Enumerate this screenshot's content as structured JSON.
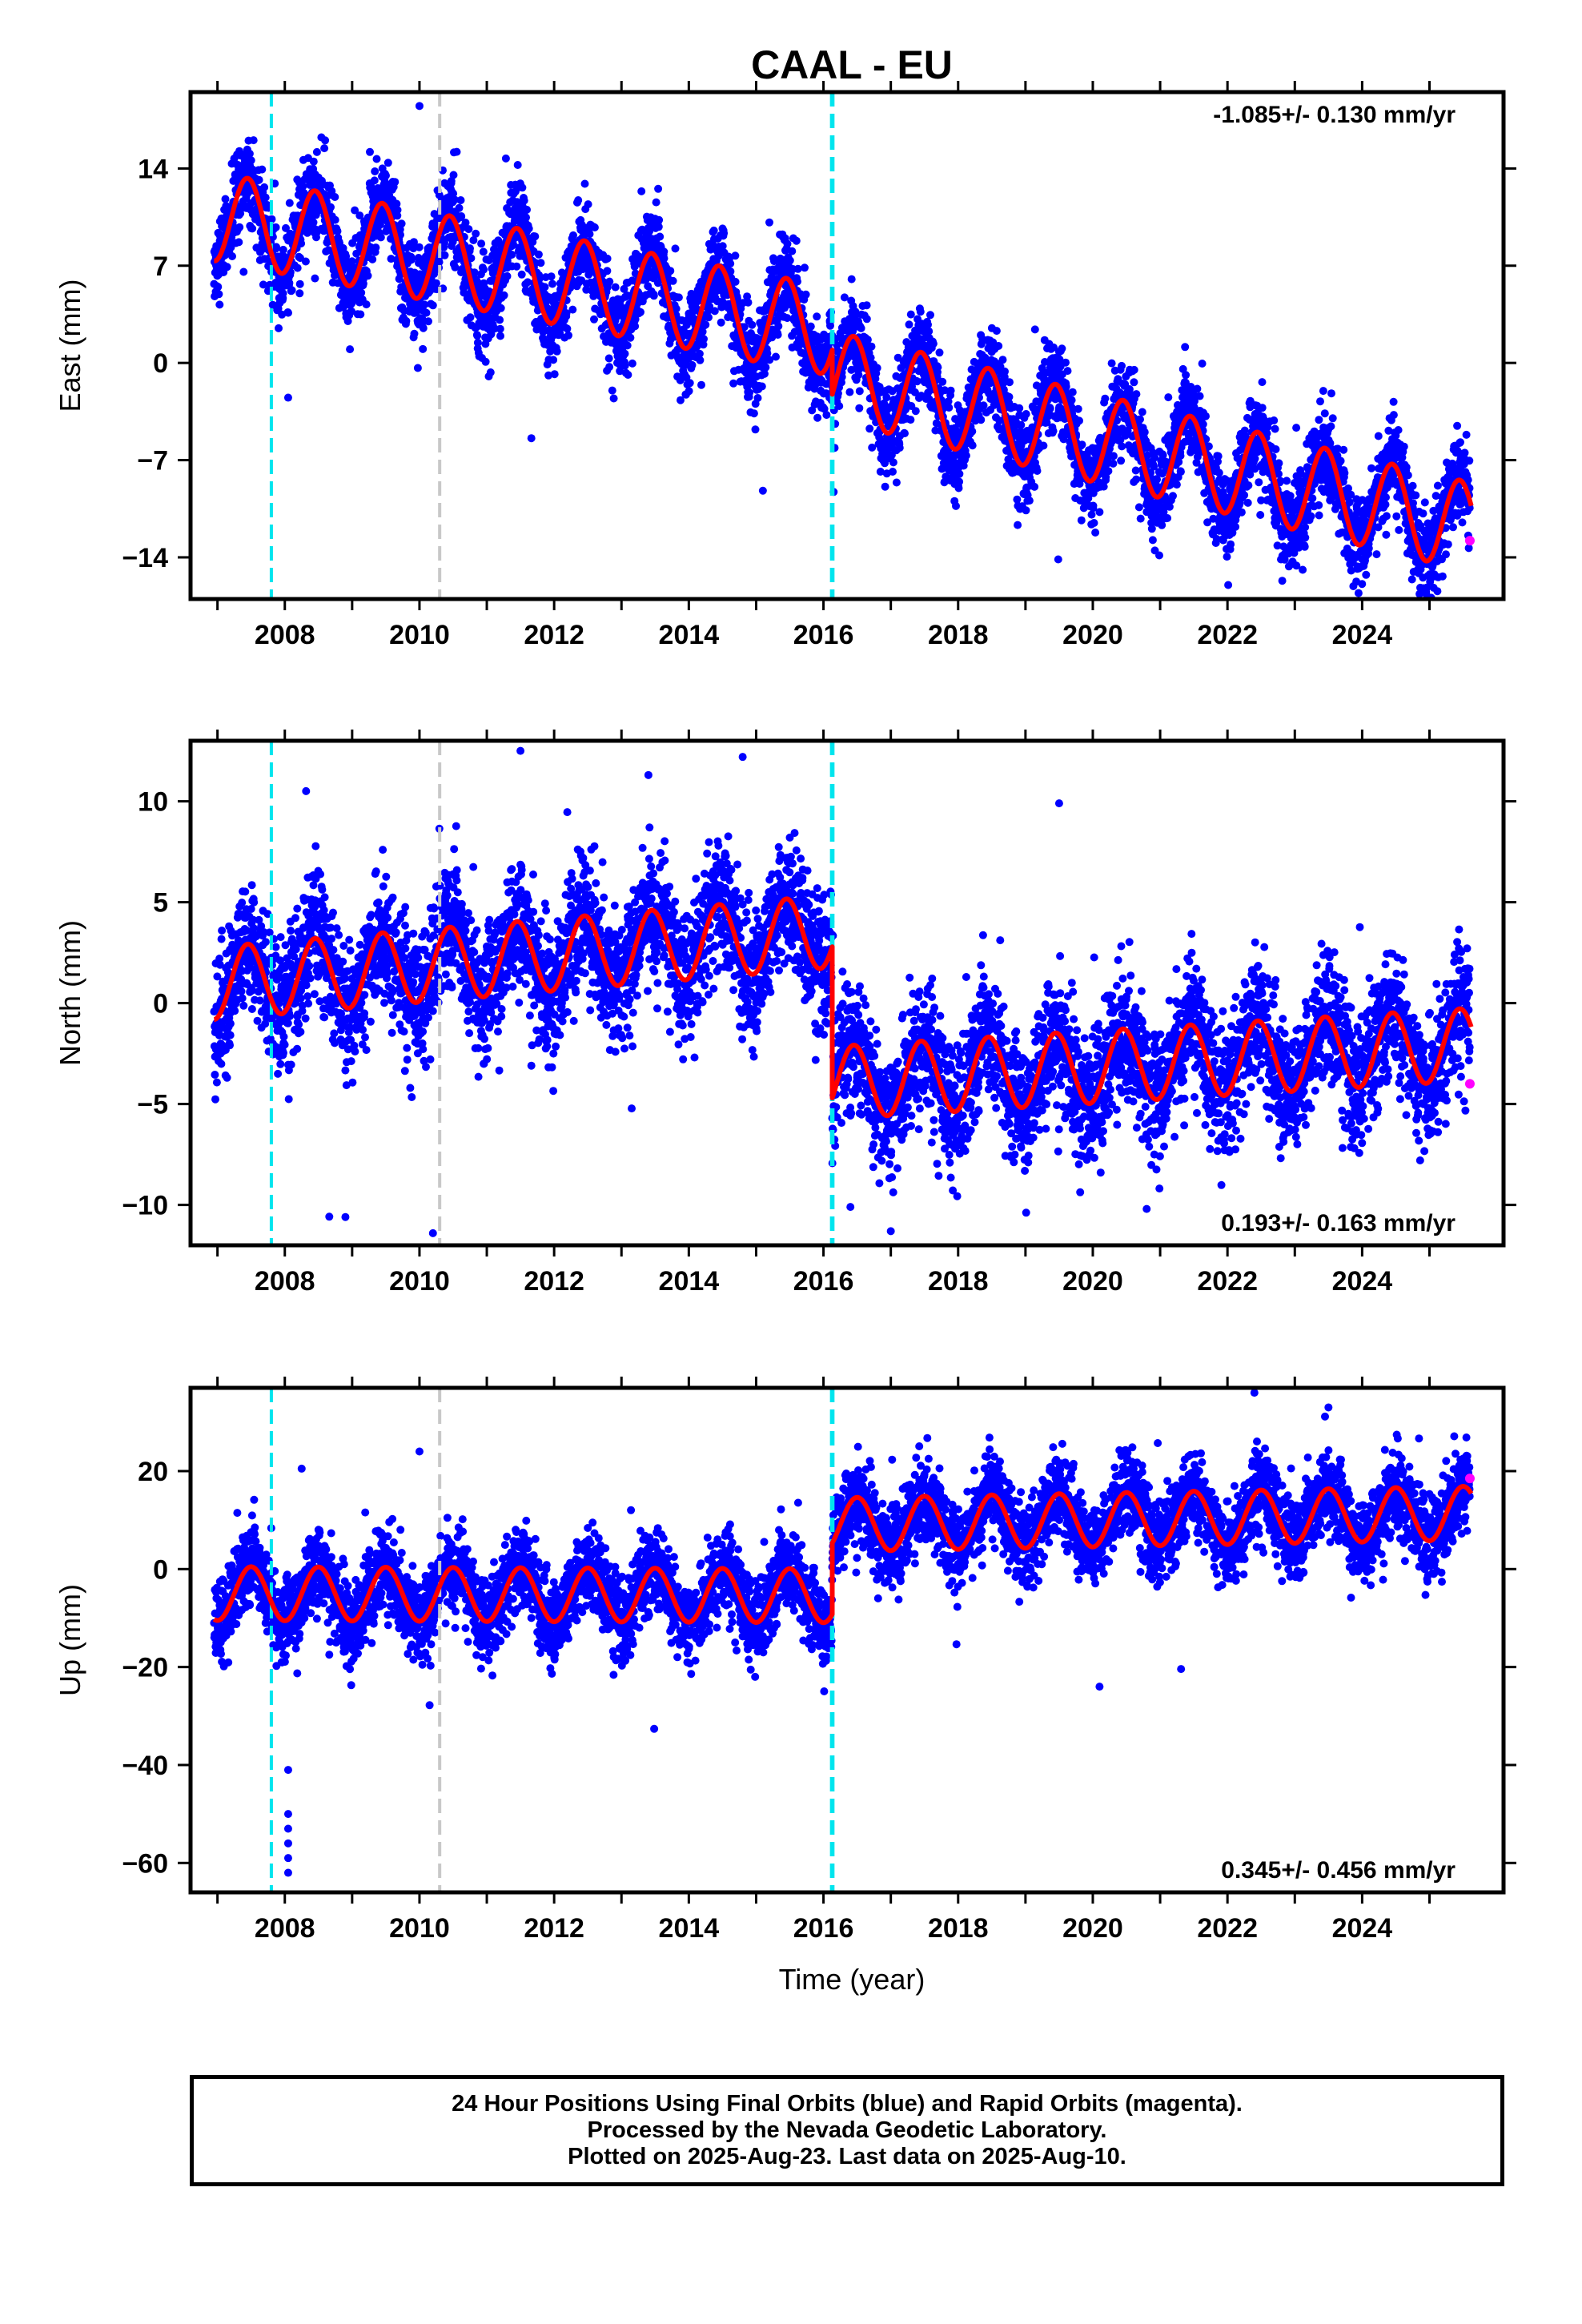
{
  "title": "CAAL - EU",
  "colors": {
    "final_orbits": "#0000ff",
    "rapid_orbits": "#ff00ff",
    "model": "#ff0000",
    "antenna_change": "#00e5ee",
    "earthquake": "#c8c8c8",
    "frame": "#000000"
  },
  "x_axis": {
    "label": "Time (year)",
    "range": [
      2006.6,
      2026.1
    ],
    "ticks": [
      2008,
      2010,
      2012,
      2014,
      2016,
      2018,
      2020,
      2022,
      2024
    ]
  },
  "chart_data": [
    {
      "type": "scatter",
      "component": "east",
      "ylabel": "East (mm)",
      "ylim": [
        -17,
        19.5
      ],
      "yticks": [
        14,
        7,
        0,
        -7,
        -14
      ],
      "ytick_labels": [
        "14",
        "7",
        "0",
        "−7",
        "−14"
      ],
      "rate_label": "-1.085+/- 0.130 mm/yr",
      "rate_position": "top-right",
      "events": [
        {
          "year": 2007.8,
          "kind": "antenna_change"
        },
        {
          "year": 2010.3,
          "kind": "earthquake"
        },
        {
          "year": 2016.12,
          "kind": "antenna_change"
        },
        {
          "year": 2016.14,
          "kind": "antenna_change"
        }
      ],
      "model": {
        "offset": 10.5,
        "rate_before": -0.9,
        "step_2016": -3.2,
        "rate_after": -1.15,
        "annual_amplitude": 3.2,
        "annual_phase": 0.45
      },
      "final_orbits_scatter_mm": 1.6,
      "rapid_orbits": [
        {
          "year": 2025.6,
          "value": -12.8
        }
      ],
      "outliers": [
        [
          2010.0,
          18.5
        ],
        [
          2010.05,
          1.0
        ],
        [
          2008.05,
          -2.5
        ],
        [
          2015.1,
          -9.2
        ],
        [
          2019.5,
          0.8
        ]
      ]
    },
    {
      "type": "scatter",
      "component": "north",
      "ylabel": "North (mm)",
      "ylim": [
        -12,
        13
      ],
      "yticks": [
        10,
        5,
        0,
        -5,
        -10
      ],
      "ytick_labels": [
        "10",
        "5",
        "0",
        "−5",
        "−10"
      ],
      "rate_label": "0.193+/- 0.163 mm/yr",
      "rate_position": "bottom-right",
      "events": [
        {
          "year": 2007.8,
          "kind": "antenna_change"
        },
        {
          "year": 2010.3,
          "kind": "earthquake"
        },
        {
          "year": 2016.12,
          "kind": "antenna_change"
        },
        {
          "year": 2016.14,
          "kind": "antenna_change"
        }
      ],
      "model": {
        "offset": 1.0,
        "rate_before": 0.28,
        "step_2016": -7.5,
        "rate_after": 0.2,
        "annual_amplitude": 1.8,
        "annual_phase": 0.45
      },
      "final_orbits_scatter_mm": 1.6,
      "rapid_orbits": [
        {
          "year": 2025.6,
          "value": -4.0
        }
      ],
      "outliers": [
        [
          2008.9,
          -10.6
        ],
        [
          2010.2,
          -11.4
        ],
        [
          2011.5,
          12.5
        ],
        [
          2014.8,
          12.2
        ],
        [
          2019.5,
          9.9
        ],
        [
          2016.4,
          -10.1
        ],
        [
          2017.0,
          -11.3
        ],
        [
          2020.8,
          -10.2
        ],
        [
          2013.4,
          11.3
        ]
      ]
    },
    {
      "type": "scatter",
      "component": "up",
      "ylabel": "Up (mm)",
      "ylim": [
        -66,
        37
      ],
      "yticks": [
        20,
        0,
        -20,
        -40,
        -60
      ],
      "ytick_labels": [
        "20",
        "0",
        "−20",
        "−40",
        "−60"
      ],
      "rate_label": "0.345+/- 0.456 mm/yr",
      "rate_position": "bottom-right",
      "events": [
        {
          "year": 2007.8,
          "kind": "antenna_change"
        },
        {
          "year": 2010.3,
          "kind": "earthquake"
        },
        {
          "year": 2016.12,
          "kind": "antenna_change"
        },
        {
          "year": 2016.14,
          "kind": "antenna_change"
        }
      ],
      "model": {
        "offset": -5.0,
        "rate_before": -0.05,
        "step_2016": 14.5,
        "rate_after": 0.25,
        "annual_amplitude": 5.5,
        "annual_phase": 0.5
      },
      "final_orbits_scatter_mm": 4.2,
      "rapid_orbits": [
        {
          "year": 2025.6,
          "value": 18.5
        }
      ],
      "outliers": [
        [
          2008.05,
          -41
        ],
        [
          2008.05,
          -50
        ],
        [
          2008.05,
          -53
        ],
        [
          2008.05,
          -56
        ],
        [
          2008.05,
          -59
        ],
        [
          2008.05,
          -62
        ],
        [
          2008.25,
          20.5
        ],
        [
          2010.0,
          24
        ],
        [
          2020.1,
          -24
        ],
        [
          2022.4,
          36
        ],
        [
          2023.5,
          33
        ]
      ]
    }
  ],
  "caption": {
    "line1": "24 Hour Positions Using Final Orbits (blue) and Rapid Orbits (magenta).",
    "line2": "Processed by the Nevada Geodetic Laboratory.",
    "line3": "Plotted on 2025-Aug-23. Last data on 2025-Aug-10."
  }
}
